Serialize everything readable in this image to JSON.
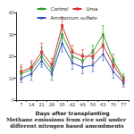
{
  "chart_data": {
    "type": "line",
    "title": "Methane emissions from rice soil under different nitrogen based amendments",
    "x_label": "Days after transplanting",
    "categories": [
      "7",
      "14",
      "21",
      "28",
      "35",
      "42",
      "49",
      "56",
      "63",
      "70",
      "77"
    ],
    "series": [
      {
        "name": "Control",
        "color": "#2ca02c",
        "marker": "circle",
        "values": [
          12,
          14,
          20,
          14,
          30,
          20,
          18,
          22,
          30,
          18,
          10
        ],
        "errors": [
          3,
          3,
          4,
          3,
          4,
          3,
          3,
          3,
          4,
          3,
          2
        ]
      },
      {
        "name": "Urea",
        "color": "#e03030",
        "marker": "square",
        "values": [
          13,
          15,
          22,
          16,
          34,
          22,
          20,
          20,
          25,
          16,
          9
        ],
        "errors": [
          3,
          3,
          4,
          3,
          4,
          3,
          3,
          3,
          4,
          3,
          2
        ]
      },
      {
        "name": "Ammonium sulfate",
        "color": "#3050c0",
        "marker": "triangle",
        "values": [
          10,
          12,
          18,
          12,
          26,
          17,
          15,
          16,
          21,
          13,
          8
        ],
        "errors": [
          2,
          3,
          3,
          3,
          4,
          3,
          3,
          3,
          3,
          3,
          2
        ]
      }
    ],
    "ylim": [
      0,
      40
    ],
    "yticks": [
      0,
      10,
      20,
      30,
      40
    ],
    "legend": "top",
    "grid": false
  }
}
